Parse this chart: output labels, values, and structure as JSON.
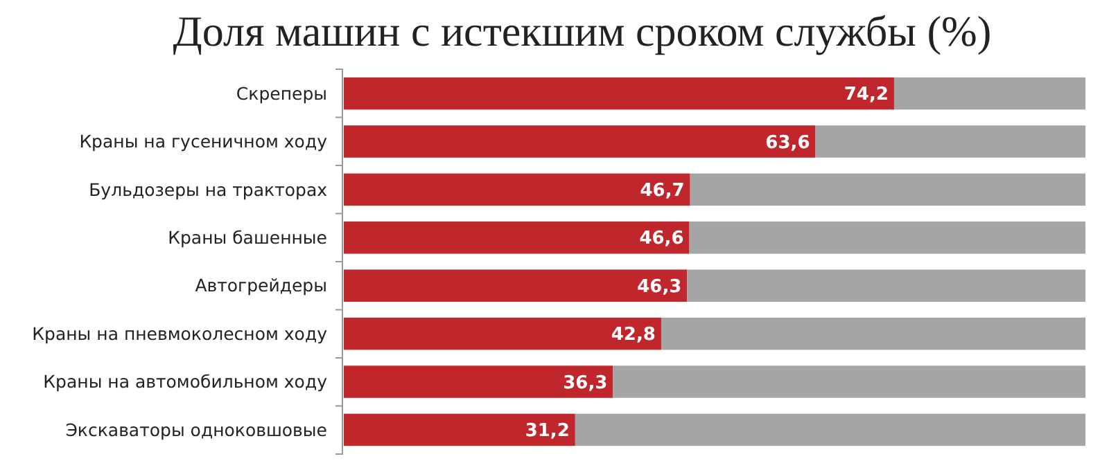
{
  "chart_data": {
    "type": "bar",
    "orientation": "horizontal",
    "stacked": true,
    "title": "Доля машин с истекшим сроком службы (%)",
    "categories": [
      "Скреперы",
      "Краны на гусеничном ходу",
      "Бульдозеры на тракторах",
      "Краны башенные",
      "Автогрейдеры",
      "Краны на пневмоколесном ходу",
      "Краны на автомобильном ходу",
      "Экскаваторы одноковшовые"
    ],
    "series": [
      {
        "color": "#c0272d",
        "values": [
          74.2,
          63.6,
          46.7,
          46.6,
          46.3,
          42.8,
          36.3,
          31.2
        ],
        "value_labels": [
          "74,2",
          "63,6",
          "46,7",
          "46,6",
          "46,3",
          "42,8",
          "36,3",
          "31,2"
        ]
      },
      {
        "color": "#a5a5a5",
        "values": [
          25.8,
          36.4,
          53.3,
          53.4,
          53.7,
          57.2,
          63.7,
          68.8
        ]
      }
    ],
    "xlim": [
      0,
      100
    ],
    "tick_labels": "y"
  }
}
